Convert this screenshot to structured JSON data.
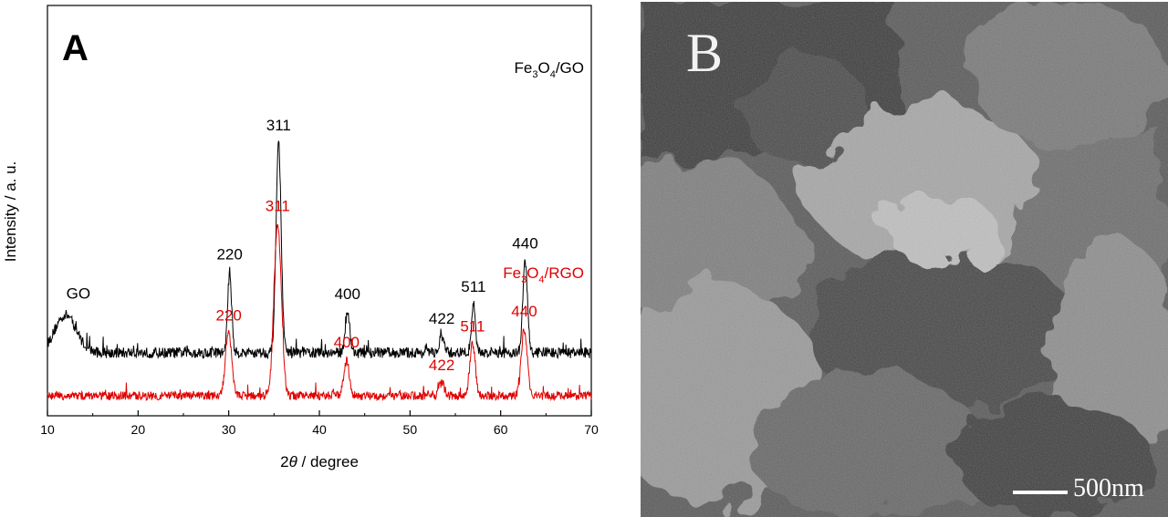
{
  "panel_a_label": "A",
  "panel_b_label": "B",
  "scale_bar_label": "500nm",
  "colors": {
    "trace_top": "#000000",
    "trace_bottom": "#e00000"
  },
  "chart_data": {
    "type": "line",
    "xlabel_prefix": "2",
    "xlabel_symbol": "θ",
    "xlabel_suffix": " / degree",
    "ylabel": "Intensity / a. u.",
    "xlim": [
      10,
      70
    ],
    "xticks": [
      10,
      20,
      30,
      40,
      50,
      60,
      70
    ],
    "yticks_shown": false,
    "series": [
      {
        "name_parts": [
          "Fe",
          "3",
          "O",
          "4",
          "/GO"
        ],
        "color": "#000000",
        "baseline": 0.45,
        "noise": 0.1,
        "broad": [
          {
            "x": 12,
            "h": 0.35,
            "w": 1.2
          }
        ],
        "peaks": [
          {
            "x": 30.1,
            "h": 0.75,
            "w": 0.22,
            "label": "220"
          },
          {
            "x": 35.5,
            "h": 1.95,
            "w": 0.28,
            "label": "311"
          },
          {
            "x": 43.1,
            "h": 0.38,
            "w": 0.25,
            "label": "400"
          },
          {
            "x": 53.5,
            "h": 0.15,
            "w": 0.25,
            "label": "422"
          },
          {
            "x": 57.0,
            "h": 0.45,
            "w": 0.22,
            "label": "511"
          },
          {
            "x": 62.7,
            "h": 0.85,
            "w": 0.25,
            "label": "440"
          }
        ],
        "annotations": [
          {
            "text": "GO",
            "x": 12
          }
        ]
      },
      {
        "name_parts": [
          "Fe",
          "3",
          "O",
          "4",
          "/RGO"
        ],
        "color": "#e00000",
        "baseline": 0.05,
        "noise": 0.08,
        "broad": [],
        "peaks": [
          {
            "x": 30.0,
            "h": 0.58,
            "w": 0.35,
            "label": "220"
          },
          {
            "x": 35.4,
            "h": 1.6,
            "w": 0.4,
            "label": "311"
          },
          {
            "x": 43.0,
            "h": 0.33,
            "w": 0.3,
            "label": "400"
          },
          {
            "x": 53.5,
            "h": 0.12,
            "w": 0.3,
            "label": "422"
          },
          {
            "x": 56.9,
            "h": 0.48,
            "w": 0.3,
            "label": "511"
          },
          {
            "x": 62.6,
            "h": 0.62,
            "w": 0.32,
            "label": "440"
          }
        ],
        "annotations": []
      }
    ]
  }
}
